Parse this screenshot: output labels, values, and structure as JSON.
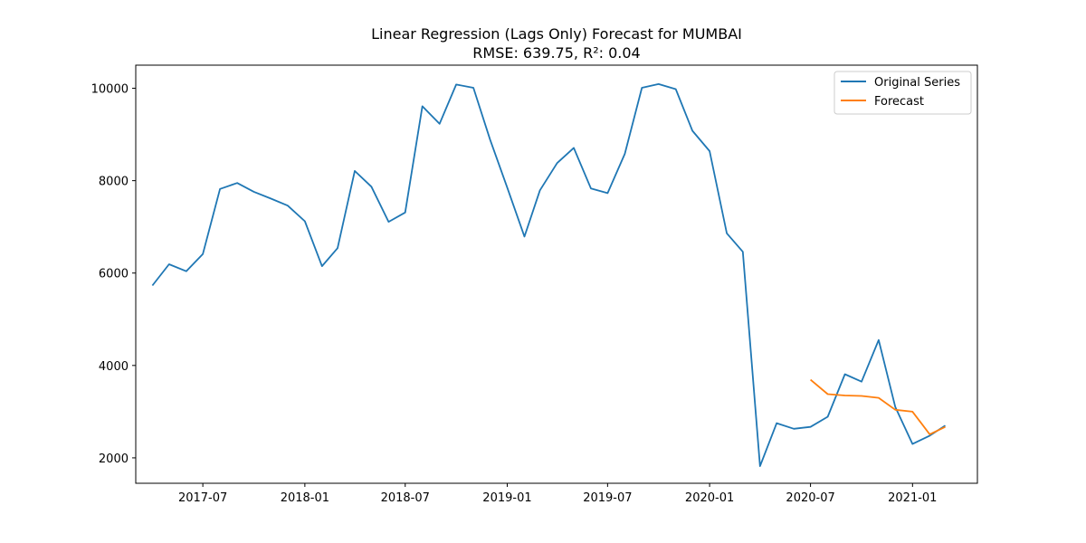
{
  "chart_data": {
    "type": "line",
    "title": "Linear Regression (Lags Only) Forecast for MUMBAI",
    "subtitle": "RMSE: 639.75, R²: 0.04",
    "xlabel": "",
    "ylabel": "",
    "xlim": [
      "2017-03-02",
      "2021-04-28"
    ],
    "ylim": [
      1450,
      10500
    ],
    "x_ticks": [
      "2017-07",
      "2018-01",
      "2018-07",
      "2019-01",
      "2019-07",
      "2020-01",
      "2020-07",
      "2021-01"
    ],
    "y_ticks": [
      2000,
      4000,
      6000,
      8000,
      10000
    ],
    "grid": false,
    "legend_position": "upper right",
    "series": [
      {
        "name": "Original Series",
        "color": "#1f77b4",
        "x": [
          "2017-04-01",
          "2017-05-01",
          "2017-06-01",
          "2017-07-01",
          "2017-08-01",
          "2017-09-01",
          "2017-10-01",
          "2017-11-01",
          "2017-12-01",
          "2018-01-01",
          "2018-02-01",
          "2018-03-01",
          "2018-04-01",
          "2018-05-01",
          "2018-06-01",
          "2018-07-01",
          "2018-08-01",
          "2018-09-01",
          "2018-10-01",
          "2018-11-01",
          "2018-12-01",
          "2019-01-01",
          "2019-02-01",
          "2019-03-01",
          "2019-04-01",
          "2019-05-01",
          "2019-06-01",
          "2019-07-01",
          "2019-08-01",
          "2019-09-01",
          "2019-10-01",
          "2019-11-01",
          "2019-12-01",
          "2020-01-01",
          "2020-02-01",
          "2020-03-01",
          "2020-04-01",
          "2020-05-01",
          "2020-06-01",
          "2020-07-01",
          "2020-08-01",
          "2020-09-01",
          "2020-10-01",
          "2020-11-01",
          "2020-12-01",
          "2021-01-01",
          "2021-02-01",
          "2021-03-01"
        ],
        "values": [
          5730,
          6190,
          6040,
          6410,
          7820,
          7950,
          7760,
          7610,
          7460,
          7120,
          6150,
          6540,
          8210,
          7870,
          7110,
          7310,
          9610,
          9230,
          10080,
          10010,
          8890,
          7850,
          6790,
          7790,
          8380,
          8710,
          7830,
          7730,
          8580,
          10010,
          10090,
          9980,
          9080,
          8640,
          6860,
          6460,
          1820,
          2750,
          2630,
          2670,
          2890,
          3810,
          3650,
          4550,
          3100,
          2300,
          2480,
          2700
        ]
      },
      {
        "name": "Forecast",
        "color": "#ff7f0e",
        "x": [
          "2020-07-01",
          "2020-08-01",
          "2020-09-01",
          "2020-10-01",
          "2020-11-01",
          "2020-12-01",
          "2021-01-01",
          "2021-02-01",
          "2021-03-01"
        ],
        "values": [
          3690,
          3380,
          3350,
          3340,
          3300,
          3040,
          3000,
          2510,
          2670
        ]
      }
    ]
  }
}
